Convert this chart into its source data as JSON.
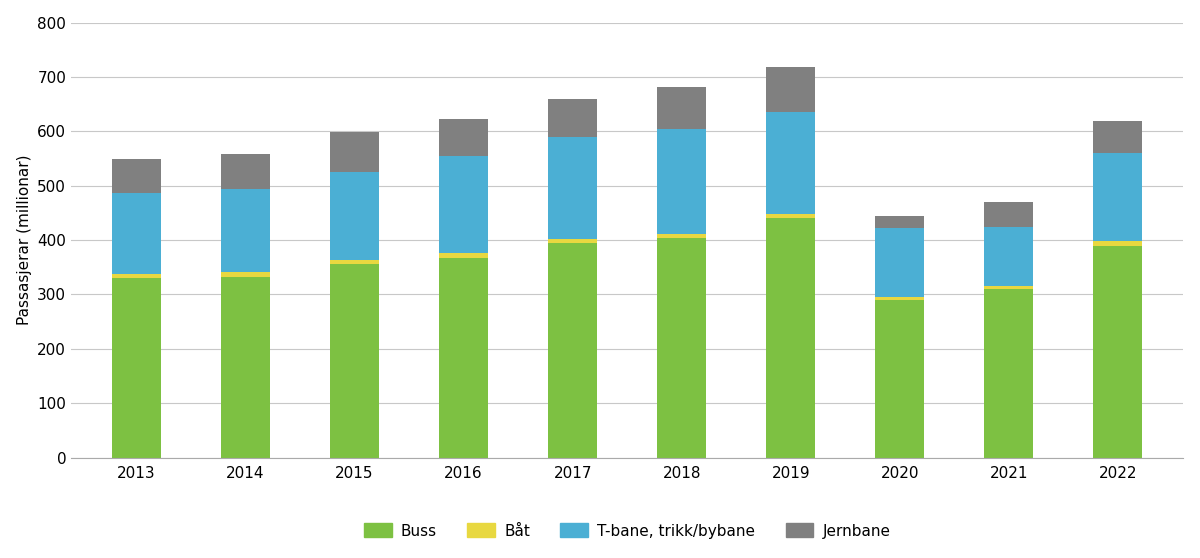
{
  "years": [
    2013,
    2014,
    2015,
    2016,
    2017,
    2018,
    2019,
    2020,
    2021,
    2022
  ],
  "buss": [
    330,
    333,
    356,
    368,
    394,
    403,
    440,
    290,
    310,
    390
  ],
  "bat": [
    8,
    8,
    8,
    8,
    8,
    8,
    8,
    5,
    5,
    8
  ],
  "tbane": [
    148,
    153,
    162,
    178,
    188,
    193,
    188,
    128,
    110,
    162
  ],
  "jernbane": [
    63,
    65,
    72,
    68,
    70,
    78,
    82,
    22,
    45,
    60
  ],
  "colors": {
    "buss": "#7dc142",
    "bat": "#e8d840",
    "tbane": "#4bafd4",
    "jernbane": "#808080"
  },
  "ylabel": "Passasjerar (millionar)",
  "ylim": [
    0,
    800
  ],
  "yticks": [
    0,
    100,
    200,
    300,
    400,
    500,
    600,
    700,
    800
  ],
  "legend_labels": [
    "Buss",
    "Båt",
    "T-bane, trikk/bybane",
    "Jernbane"
  ],
  "bar_width": 0.45,
  "figure_bg": "#ffffff",
  "axes_bg": "#ffffff",
  "grid_color": "#c8c8c8",
  "spine_color": "#aaaaaa"
}
